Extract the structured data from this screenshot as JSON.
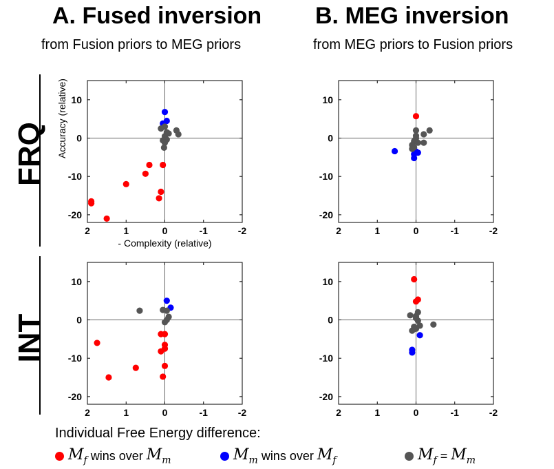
{
  "headers": {
    "col_a_title": "A. Fused inversion",
    "col_a_sub": "from Fusion priors to MEG priors",
    "col_b_title": "B. MEG inversion",
    "col_b_sub": "from MEG priors to Fusion priors",
    "row_1": "FRQ",
    "row_2": "INT"
  },
  "legend": {
    "title": "Individual Free Energy difference:",
    "items": [
      {
        "color_name": "red",
        "color": "#ff0000",
        "pre": "M",
        "pre_sub": "f",
        "mid": " wins over ",
        "post": "M",
        "post_sub": "m"
      },
      {
        "color_name": "blue",
        "color": "#0000ff",
        "pre": "M",
        "pre_sub": "m",
        "mid": " wins over ",
        "post": "M",
        "post_sub": "f"
      },
      {
        "color_name": "gray",
        "color": "#555555",
        "pre": "M",
        "pre_sub": "f",
        "mid": " = ",
        "post": "M",
        "post_sub": "m"
      }
    ]
  },
  "chart_data": [
    {
      "type": "scatter",
      "panel": "A-FRQ",
      "xlabel": "- Complexity (relative)",
      "ylabel": "Accuracy (relative)",
      "xlim": [
        2,
        -2
      ],
      "ylim": [
        -22,
        15
      ],
      "xticks": [
        "2",
        "1",
        "0",
        "-1",
        "-2"
      ],
      "yticks": [
        "10",
        "0",
        "-10",
        "-20"
      ],
      "series": [
        {
          "color": "red",
          "points": [
            [
              1.9,
              -16.5
            ],
            [
              1.9,
              -17
            ],
            [
              1.5,
              -21
            ],
            [
              1.0,
              -12
            ],
            [
              0.5,
              -9.3
            ],
            [
              0.4,
              -7
            ],
            [
              0.05,
              -7
            ],
            [
              0.1,
              -14
            ],
            [
              0.15,
              -15.7
            ]
          ]
        },
        {
          "color": "blue",
          "points": [
            [
              0.0,
              6.8
            ],
            [
              -0.05,
              4.5
            ],
            [
              0.05,
              3.8
            ]
          ]
        },
        {
          "color": "gray",
          "points": [
            [
              0.1,
              2.5
            ],
            [
              0.0,
              3.0
            ],
            [
              -0.3,
              2
            ],
            [
              -0.35,
              1
            ],
            [
              -0.05,
              1.5
            ],
            [
              -0.1,
              1.2
            ],
            [
              0.0,
              0.5
            ],
            [
              0.05,
              -0.6
            ],
            [
              -0.05,
              -0.4
            ],
            [
              0.0,
              -1.2
            ],
            [
              0.02,
              -2.5
            ]
          ]
        }
      ]
    },
    {
      "type": "scatter",
      "panel": "B-FRQ",
      "xlim": [
        2,
        -2
      ],
      "ylim": [
        -22,
        15
      ],
      "xticks": [
        "2",
        "1",
        "0",
        "-1",
        "-2"
      ],
      "yticks": [
        "10",
        "0",
        "-10",
        "-20"
      ],
      "series": [
        {
          "color": "red",
          "points": [
            [
              0.0,
              5.7
            ]
          ]
        },
        {
          "color": "blue",
          "points": [
            [
              0.55,
              -3.4
            ],
            [
              0.0,
              -3.5
            ],
            [
              -0.05,
              -3.8
            ],
            [
              0.05,
              -4.2
            ],
            [
              0.05,
              -5.2
            ]
          ]
        },
        {
          "color": "gray",
          "points": [
            [
              0.0,
              2.0
            ],
            [
              -0.35,
              2.0
            ],
            [
              -0.2,
              1.0
            ],
            [
              0.0,
              0.6
            ],
            [
              0.0,
              0
            ],
            [
              0.05,
              -0.8
            ],
            [
              -0.05,
              -1.2
            ],
            [
              -0.2,
              -1.2
            ],
            [
              0.1,
              -1.8
            ],
            [
              0.05,
              -2.4
            ],
            [
              0.1,
              -2.8
            ]
          ]
        }
      ]
    },
    {
      "type": "scatter",
      "panel": "A-INT",
      "xlim": [
        2,
        -2
      ],
      "ylim": [
        -22,
        15
      ],
      "xticks": [
        "2",
        "1",
        "0",
        "-1",
        "-2"
      ],
      "yticks": [
        "10",
        "0",
        "-10",
        "-20"
      ],
      "series": [
        {
          "color": "red",
          "points": [
            [
              1.75,
              -6.0
            ],
            [
              1.45,
              -15.0
            ],
            [
              0.75,
              -12.5
            ],
            [
              0.1,
              -3.7
            ],
            [
              0.0,
              -3.7
            ],
            [
              0.0,
              -6.5
            ],
            [
              0.0,
              -7.5
            ],
            [
              0.1,
              -8.2
            ],
            [
              0.0,
              -12.0
            ],
            [
              0.05,
              -14.8
            ]
          ]
        },
        {
          "color": "blue",
          "points": [
            [
              -0.05,
              5.0
            ],
            [
              -0.15,
              3.2
            ]
          ]
        },
        {
          "color": "gray",
          "points": [
            [
              0.65,
              2.4
            ],
            [
              0.05,
              2.6
            ],
            [
              -0.05,
              2.4
            ],
            [
              -0.1,
              0.8
            ],
            [
              0.0,
              -0.6
            ],
            [
              -0.05,
              0.0
            ]
          ]
        }
      ]
    },
    {
      "type": "scatter",
      "panel": "B-INT",
      "xlim": [
        2,
        -2
      ],
      "ylim": [
        -22,
        15
      ],
      "xticks": [
        "2",
        "1",
        "0",
        "-1",
        "-2"
      ],
      "yticks": [
        "10",
        "0",
        "-10",
        "-20"
      ],
      "series": [
        {
          "color": "red",
          "points": [
            [
              0.05,
              10.6
            ],
            [
              -0.05,
              5.3
            ],
            [
              0.0,
              4.8
            ]
          ]
        },
        {
          "color": "blue",
          "points": [
            [
              -0.1,
              -4.0
            ],
            [
              0.1,
              -7.8
            ],
            [
              0.1,
              -8.5
            ]
          ]
        },
        {
          "color": "gray",
          "points": [
            [
              0.15,
              1.2
            ],
            [
              -0.05,
              2.0
            ],
            [
              0.0,
              1.0
            ],
            [
              -0.05,
              -0.2
            ],
            [
              0.0,
              0.5
            ],
            [
              -0.45,
              -1.2
            ],
            [
              -0.1,
              -1.5
            ],
            [
              0.05,
              -1.8
            ],
            [
              0.0,
              -2.3
            ],
            [
              0.1,
              -2.8
            ],
            [
              0.05,
              -2.4
            ]
          ]
        }
      ]
    }
  ]
}
